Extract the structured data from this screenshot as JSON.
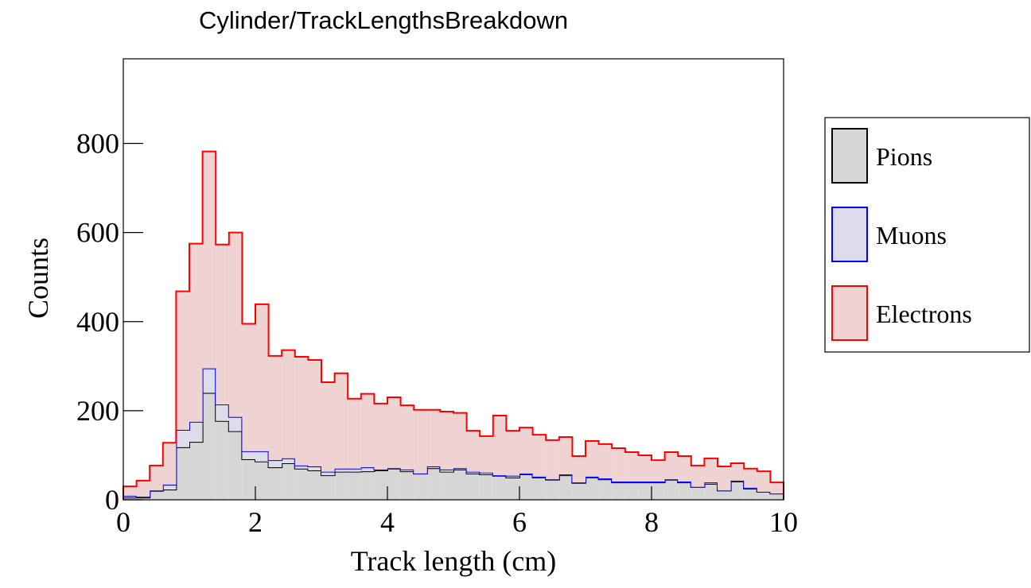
{
  "chart_data": {
    "type": "histogram",
    "stacked": true,
    "title": "Cylinder/TrackLengthsBreakdown",
    "x_label": "Track length (cm)",
    "y_label": "Counts",
    "bins": [
      0,
      0.2,
      0.4,
      0.6,
      0.8,
      1,
      1.2,
      1.4,
      1.6,
      1.8,
      2,
      2.2,
      2.4,
      2.6,
      2.8,
      3,
      3.2,
      3.4,
      3.6,
      3.8,
      4,
      4.2,
      4.4,
      4.6,
      4.8,
      5,
      5.2,
      5.4,
      5.6,
      5.8,
      6,
      6.2,
      6.4,
      6.6,
      6.8,
      7,
      7.2,
      7.4,
      7.6,
      7.8,
      8,
      8.2,
      8.4,
      8.6,
      8.8,
      9,
      9.2,
      9.4,
      9.6,
      9.8,
      10
    ],
    "series": [
      {
        "name": "Pions",
        "color": "#000000",
        "fill": "#d6d6d6",
        "values": [
          5,
          5,
          20,
          23,
          118,
          130,
          240,
          177,
          154,
          91,
          86,
          73,
          82,
          70,
          66,
          55,
          63,
          63,
          64,
          66,
          70,
          64,
          59,
          71,
          63,
          68,
          59,
          57,
          54,
          50,
          57,
          50,
          45,
          55,
          38,
          50,
          46,
          39,
          39,
          39,
          39,
          45,
          39,
          29,
          36,
          21,
          41,
          25,
          18,
          14
        ]
      },
      {
        "name": "Muons",
        "color": "#0000ff",
        "fill": "#dcdcea",
        "values": [
          4,
          2,
          1,
          11,
          39,
          45,
          55,
          37,
          32,
          18,
          23,
          16,
          11,
          7,
          9,
          8,
          7,
          7,
          9,
          2,
          1,
          4,
          0,
          4,
          5,
          3,
          4,
          4,
          1,
          4,
          2,
          2,
          1,
          2,
          1,
          2,
          2,
          2,
          2,
          2,
          2,
          1,
          2,
          0,
          3,
          0,
          2,
          2,
          0,
          0
        ]
      },
      {
        "name": "Electrons",
        "color": "#ff0000",
        "fill": "#efd2d2",
        "values": [
          21,
          36,
          56,
          94,
          311,
          400,
          487,
          359,
          414,
          286,
          330,
          234,
          243,
          244,
          239,
          201,
          214,
          157,
          165,
          148,
          159,
          144,
          143,
          127,
          130,
          124,
          92,
          82,
          134,
          101,
          103,
          94,
          88,
          84,
          59,
          80,
          77,
          75,
          66,
          59,
          48,
          61,
          57,
          48,
          54,
          54,
          39,
          43,
          46,
          25
        ]
      }
    ],
    "xlim": [
      0,
      10
    ],
    "xticks": [
      0,
      2,
      4,
      6,
      8,
      10
    ],
    "ylim": [
      0,
      990
    ],
    "yticks": [
      0,
      200,
      400,
      600,
      800
    ],
    "legend": "right"
  }
}
